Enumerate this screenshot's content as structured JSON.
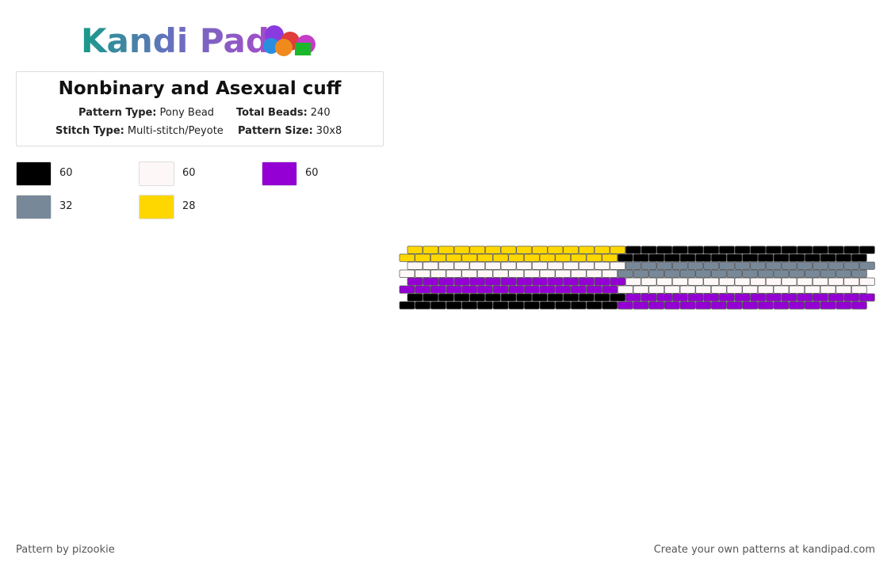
{
  "header": {
    "logo": "Kandi Pad"
  },
  "info": {
    "title": "Nonbinary and Asexual cuff",
    "fields": [
      {
        "label": "Pattern Type:",
        "value": "Pony Bead"
      },
      {
        "label": "Total Beads:",
        "value": "240"
      },
      {
        "label": "Stitch Type:",
        "value": "Multi-stitch/Peyote"
      },
      {
        "label": "Pattern Size:",
        "value": "30x8"
      }
    ]
  },
  "palette": [
    {
      "color": "#000000",
      "count": "60"
    },
    {
      "color": "#fdf8f7",
      "count": "60"
    },
    {
      "color": "#9400d3",
      "count": "60"
    },
    {
      "color": "#778899",
      "count": "32"
    },
    {
      "color": "#ffd700",
      "count": "28"
    }
  ],
  "pattern": {
    "rows": [
      [
        {
          "color": 4,
          "count": 14
        },
        {
          "color": 0,
          "count": 16
        }
      ],
      [
        {
          "color": 4,
          "count": 14
        },
        {
          "color": 0,
          "count": 16
        }
      ],
      [
        {
          "color": 1,
          "count": 14
        },
        {
          "color": 3,
          "count": 16
        }
      ],
      [
        {
          "color": 1,
          "count": 14
        },
        {
          "color": 3,
          "count": 16
        }
      ],
      [
        {
          "color": 2,
          "count": 14
        },
        {
          "color": 1,
          "count": 16
        }
      ],
      [
        {
          "color": 2,
          "count": 14
        },
        {
          "color": 1,
          "count": 16
        }
      ],
      [
        {
          "color": 0,
          "count": 14
        },
        {
          "color": 2,
          "count": 16
        }
      ],
      [
        {
          "color": 0,
          "count": 14
        },
        {
          "color": 2,
          "count": 16
        }
      ]
    ]
  },
  "footer": {
    "credit": "Pattern by pizookie",
    "link": "Create your own patterns at kandipad.com"
  }
}
